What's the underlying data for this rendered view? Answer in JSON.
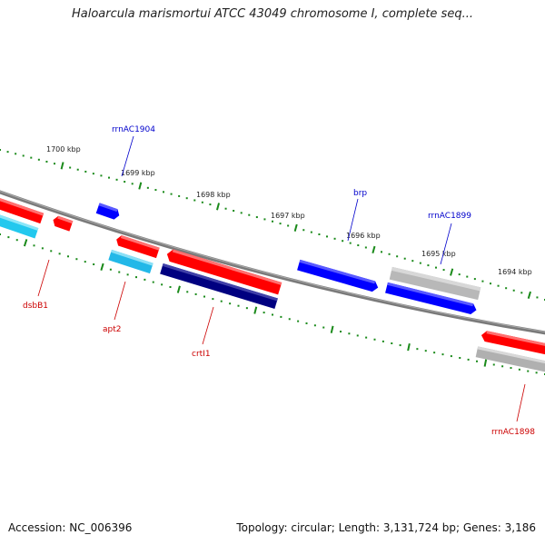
{
  "title": "Haloarcula marismortui ATCC 43049 chromosome I, complete seq...",
  "footer": {
    "accession": "Accession: NC_006396",
    "summary": "Topology: circular; Length: 3,131,724 bp; Genes: 3,186"
  },
  "colors": {
    "backbone": "#808080",
    "tick": "#1a8a1a",
    "label_forward": "#0000cc",
    "label_reverse": "#cc0000",
    "red": "#ff0000",
    "cyan": "#22c8ee",
    "blue": "#0000ff",
    "navy": "#000080",
    "gray": "#b8b8b8"
  },
  "kbp_labels": [
    "1700 kbp",
    "1699 kbp",
    "1698 kbp",
    "1697 kbp",
    "1696 kbp",
    "1695 kbp",
    "1694 kbp"
  ],
  "gene_labels": {
    "rrnAC1904": "rrnAC1904",
    "brp": "brp",
    "rrnAC1899": "rrnAC1899",
    "dsbB1": "dsbB1",
    "apt2": "apt2",
    "crtI1": "crtI1",
    "rrnAC1898": "rrnAC1898"
  }
}
